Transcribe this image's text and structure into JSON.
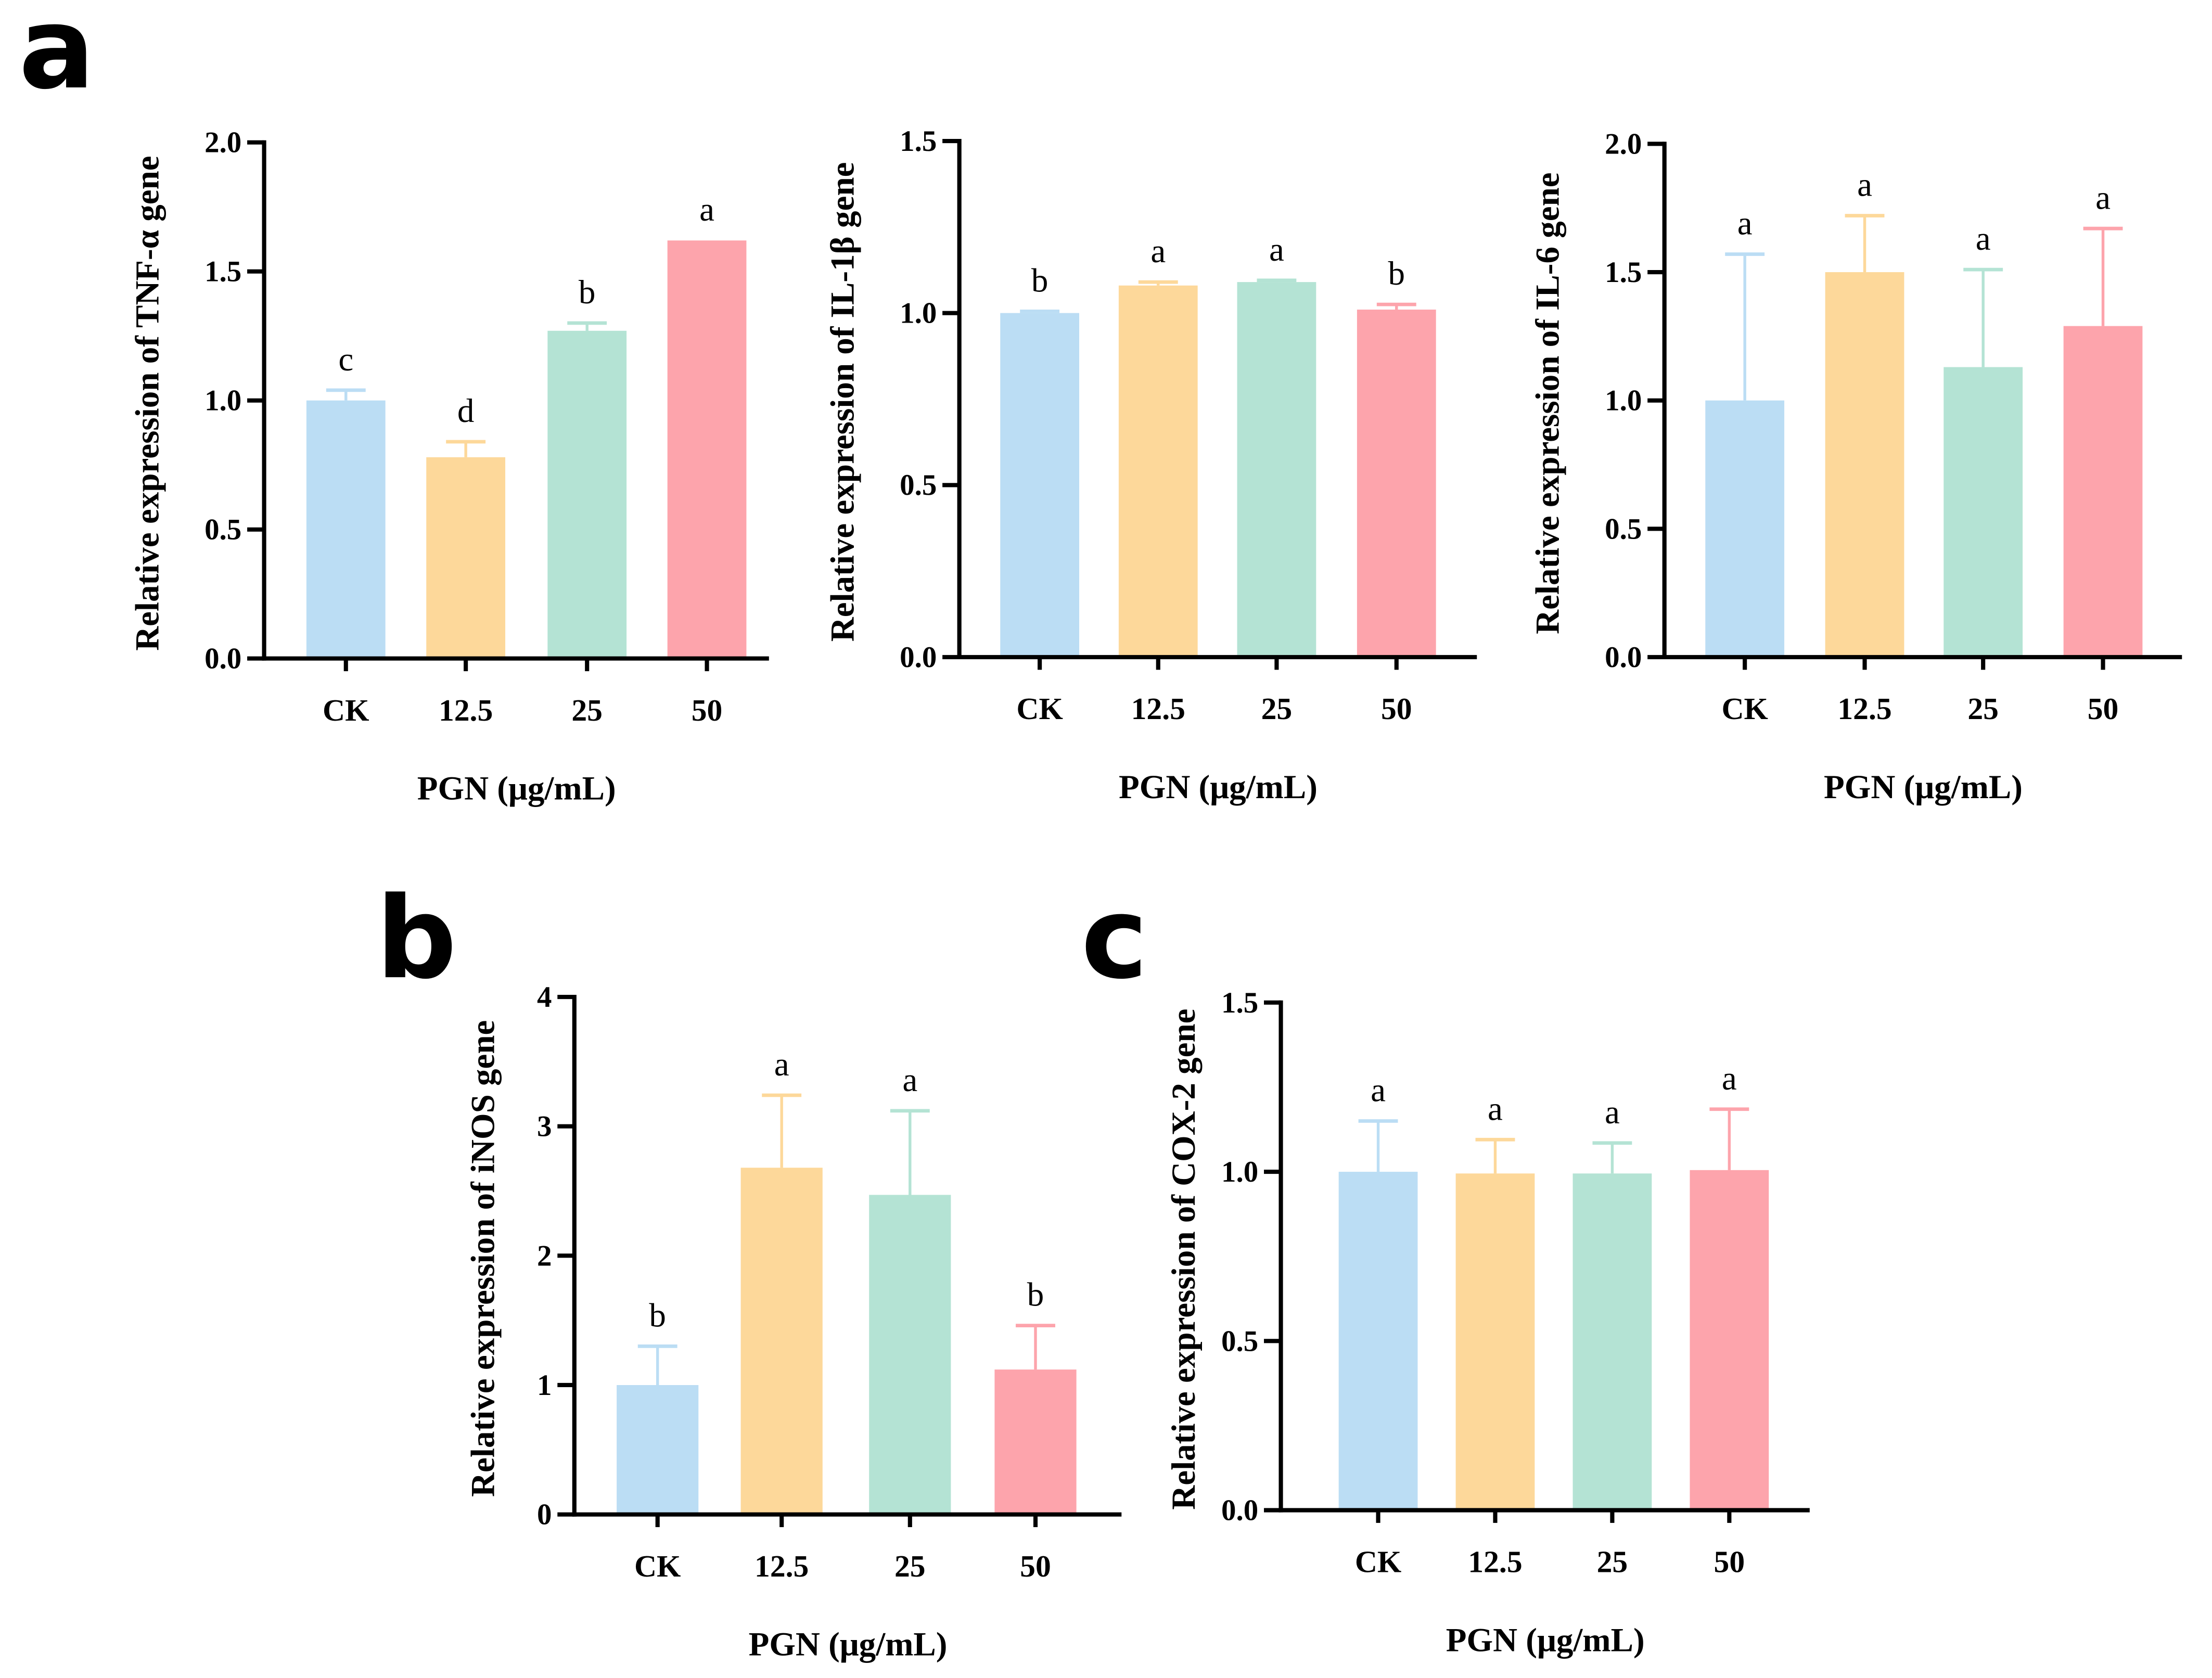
{
  "colors": [
    "#BBDDF4",
    "#FDD89A",
    "#B4E3D4",
    "#FDA4AC"
  ],
  "chart_data": [
    {
      "type": "bar",
      "panel": "a",
      "title": "",
      "categories": [
        "CK",
        "12.5",
        "25",
        "50"
      ],
      "values": [
        1.0,
        0.78,
        1.27,
        1.62
      ],
      "errors": [
        0.04,
        0.06,
        0.03,
        0.0
      ],
      "letters": [
        "c",
        "d",
        "b",
        "a"
      ],
      "xlabel": "PGN (μg/mL)",
      "ylabel": "Relative expression of TNF-α gene",
      "ylim": [
        0,
        2.0
      ],
      "yticks": [
        "0.0",
        "0.5",
        "1.0",
        "1.5",
        "2.0"
      ],
      "ytick_values": [
        0,
        0.5,
        1.0,
        1.5,
        2.0
      ]
    },
    {
      "type": "bar",
      "panel": "",
      "title": "",
      "categories": [
        "CK",
        "12.5",
        "25",
        "50"
      ],
      "values": [
        1.0,
        1.08,
        1.09,
        1.01
      ],
      "errors": [
        0.005,
        0.01,
        0.005,
        0.015
      ],
      "letters": [
        "b",
        "a",
        "a",
        "b"
      ],
      "xlabel": "PGN (μg/mL)",
      "ylabel": "Relative expression of IL-1β gene",
      "ylim": [
        0,
        1.5
      ],
      "yticks": [
        "0.0",
        "0.5",
        "1.0",
        "1.5"
      ],
      "ytick_values": [
        0,
        0.5,
        1.0,
        1.5
      ]
    },
    {
      "type": "bar",
      "panel": "",
      "title": "",
      "categories": [
        "CK",
        "12.5",
        "25",
        "50"
      ],
      "values": [
        1.0,
        1.5,
        1.13,
        1.29
      ],
      "errors": [
        0.57,
        0.22,
        0.38,
        0.38
      ],
      "letters": [
        "a",
        "a",
        "a",
        "a"
      ],
      "xlabel": "PGN (μg/mL)",
      "ylabel": "Relative expression of IL-6 gene",
      "ylim": [
        0,
        2.0
      ],
      "yticks": [
        "0.0",
        "0.5",
        "1.0",
        "1.5",
        "2.0"
      ],
      "ytick_values": [
        0,
        0.5,
        1.0,
        1.5,
        2.0
      ]
    },
    {
      "type": "bar",
      "panel": "b",
      "title": "",
      "categories": [
        "CK",
        "12.5",
        "25",
        "50"
      ],
      "values": [
        1.0,
        2.68,
        2.47,
        1.12
      ],
      "errors": [
        0.3,
        0.56,
        0.65,
        0.34
      ],
      "letters": [
        "b",
        "a",
        "a",
        "b"
      ],
      "xlabel": "PGN (μg/mL)",
      "ylabel": "Relative expression of iNOS gene",
      "ylim": [
        0,
        4
      ],
      "yticks": [
        "0",
        "1",
        "2",
        "3",
        "4"
      ],
      "ytick_values": [
        0,
        1,
        2,
        3,
        4
      ]
    },
    {
      "type": "bar",
      "panel": "c",
      "title": "",
      "categories": [
        "CK",
        "12.5",
        "25",
        "50"
      ],
      "values": [
        1.0,
        0.995,
        0.995,
        1.005
      ],
      "errors": [
        0.15,
        0.1,
        0.09,
        0.18
      ],
      "letters": [
        "a",
        "a",
        "a",
        "a"
      ],
      "xlabel": "PGN (μg/mL)",
      "ylabel": "Relative expression of COX-2 gene",
      "ylim": [
        0,
        1.5
      ],
      "yticks": [
        "0.0",
        "0.5",
        "1.0",
        "1.5"
      ],
      "ytick_values": [
        0,
        0.5,
        1.0,
        1.5
      ]
    }
  ]
}
